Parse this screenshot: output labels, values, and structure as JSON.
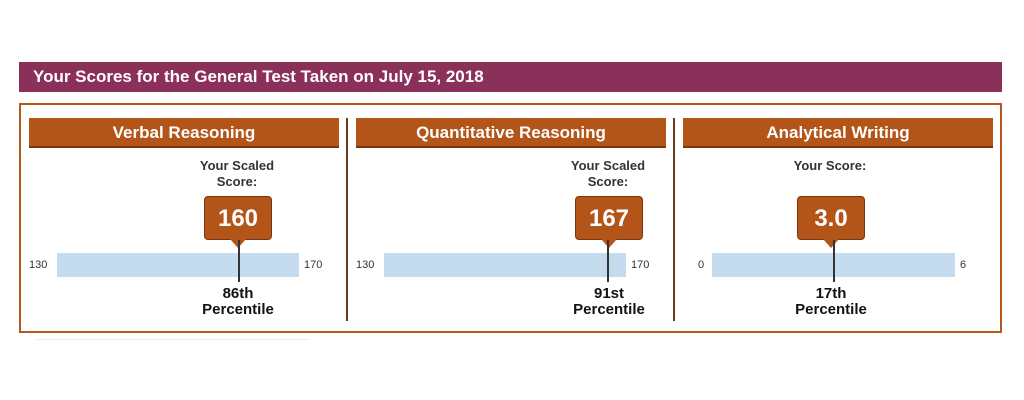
{
  "banner": {
    "title": "Your Scores for the General Test Taken on July 15, 2018"
  },
  "sections": [
    {
      "title": "Verbal Reasoning",
      "score_label": "Your Scaled Score:",
      "score": "160",
      "scale_min": "130",
      "scale_max": "170",
      "score_value": 160,
      "range": [
        130,
        170
      ],
      "percentile_rank": "86th",
      "percentile_word": "Percentile"
    },
    {
      "title": "Quantitative Reasoning",
      "score_label": "Your Scaled Score:",
      "score": "167",
      "scale_min": "130",
      "scale_max": "170",
      "score_value": 167,
      "range": [
        130,
        170
      ],
      "percentile_rank": "91st",
      "percentile_word": "Percentile"
    },
    {
      "title": "Analytical Writing",
      "score_label": "Your Score:",
      "score": "3.0",
      "scale_min": "0",
      "scale_max": "6",
      "score_value": 3.0,
      "range": [
        0,
        6
      ],
      "percentile_rank": "17th",
      "percentile_word": "Percentile"
    }
  ],
  "colors": {
    "banner_bg": "#8b3059",
    "header_bg": "#b35418",
    "scale_bar": "#c5dcef"
  }
}
